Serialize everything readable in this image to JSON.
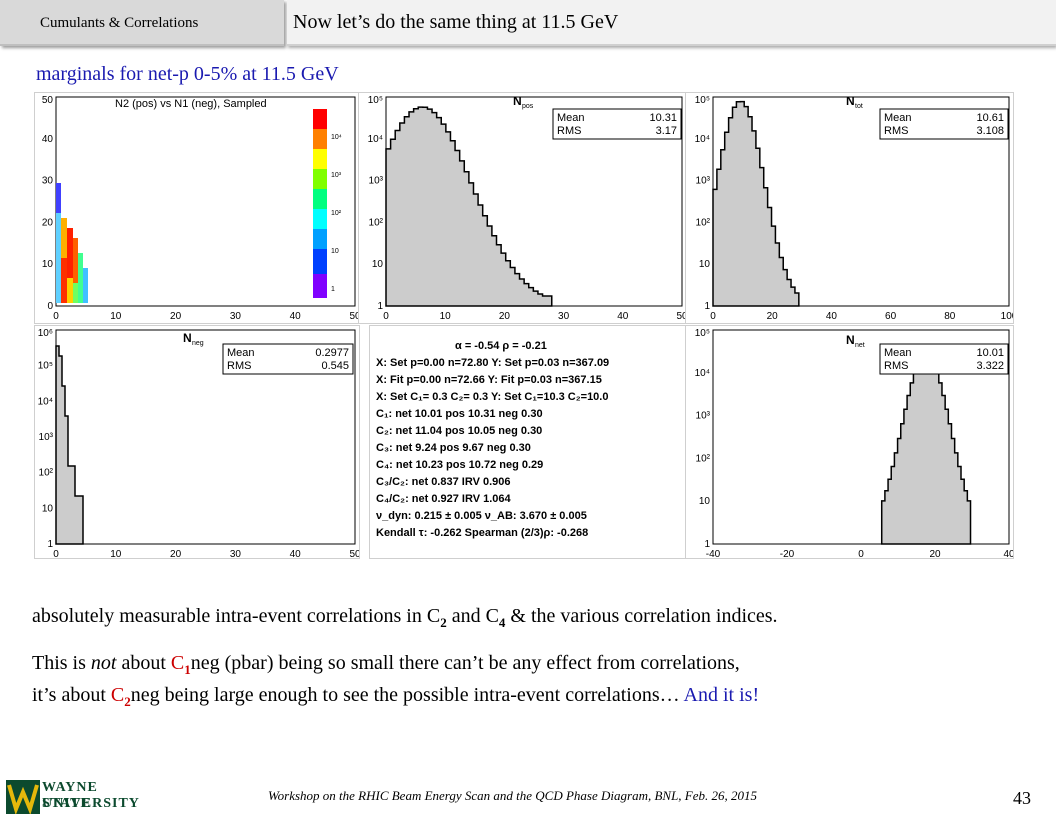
{
  "header": {
    "tag": "Cumulants & Correlations",
    "title": "Now let’s do the same thing at 11.5 GeV"
  },
  "subtitle": "marginals for net-p 0-5% at 11.5 GeV",
  "panels": {
    "p1": {
      "title": "N2 (pos) vs N1 (neg), Sampled",
      "xticks": [
        "0",
        "10",
        "20",
        "30",
        "40",
        "50"
      ],
      "yticks": [
        "0",
        "10",
        "20",
        "30",
        "40",
        "50"
      ],
      "zticks": [
        "10⁴",
        "10³",
        "10²",
        "10",
        "1"
      ]
    },
    "p2": {
      "title": "N",
      "title_sub": "pos",
      "mean_label": "Mean",
      "mean": "10.31",
      "rms_label": "RMS",
      "rms": "3.17",
      "xticks": [
        "0",
        "10",
        "20",
        "30",
        "40",
        "50"
      ],
      "yticks": [
        "10⁵",
        "10⁴",
        "10³",
        "10²",
        "10",
        "1"
      ]
    },
    "p3": {
      "title": "N",
      "title_sub": "tot",
      "mean_label": "Mean",
      "mean": "10.61",
      "rms_label": "RMS",
      "rms": "3.108",
      "xticks": [
        "0",
        "20",
        "40",
        "60",
        "80",
        "100"
      ],
      "yticks": [
        "10⁵",
        "10⁴",
        "10³",
        "10²",
        "10",
        "1"
      ]
    },
    "p4": {
      "title": "N",
      "title_sub": "neg",
      "mean_label": "Mean",
      "mean": "0.2977",
      "rms_label": "RMS",
      "rms": "0.545",
      "xticks": [
        "0",
        "10",
        "20",
        "30",
        "40",
        "50"
      ],
      "yticks": [
        "10⁶",
        "10⁵",
        "10⁴",
        "10³",
        "10²",
        "10",
        "1"
      ]
    },
    "p6": {
      "title": "N",
      "title_sub": "net",
      "mean_label": "Mean",
      "mean": "10.01",
      "rms_label": "RMS",
      "rms": "3.322",
      "xticks": [
        "-40",
        "-20",
        "0",
        "20",
        "40"
      ],
      "yticks": [
        "10⁵",
        "10⁴",
        "10³",
        "10²",
        "10",
        "1"
      ]
    }
  },
  "stats_lines": [
    "α = -0.54     ρ = -0.21",
    "X: Set p=0.00 n=72.80    Y: Set p=0.03 n=367.09",
    "X:  Fit p=0.00 n=72.66    Y:  Fit p=0.03 n=367.15",
    "X: Set C₁= 0.3 C₂= 0.3    Y: Set C₁=10.3 C₂=10.0",
    "C₁:   net 10.01   pos 10.31   neg 0.30",
    "C₂:   net 11.04   pos 10.05   neg 0.30",
    "C₃:   net  9.24   pos  9.67   neg 0.30",
    "C₄:   net 10.23   pos 10.72   neg 0.29",
    "C₃/C₂:  net 0.837  IRV 0.906",
    "C₄/C₂:  net 0.927  IRV 1.064",
    "ν_dyn:  0.215 ± 0.005          ν_AB:   3.670 ± 0.005",
    "Kendall τ:  -0.262          Spearman (2/3)ρ:  -0.268"
  ],
  "body": {
    "line1": "absolutely measurable intra-event correlations in C",
    "line1_sub2": "2",
    "line1_mid": " and C",
    "line1_sub4": "4",
    "line1_end": " & the various correlation indices.",
    "line2_a": "This is ",
    "line2_not": "not",
    "line2_b": " about ",
    "line2_c1": "C",
    "line2_c1sub": "1",
    "line2_c": "neg (pbar) being so small there can’t be any effect from correlations,",
    "line3_a": "it’s about ",
    "line3_c2": "C",
    "line3_c2sub": "2",
    "line3_b": "neg being large enough to see the possible intra-event correlations… ",
    "line3_end": "And it is!"
  },
  "footer": {
    "text": "Workshop on the RHIC Beam Energy Scan and the QCD Phase Diagram, BNL, Feb. 26, 2015",
    "page": "43",
    "logo_line1": "WAYNE STATE",
    "logo_line2": "UNIVERSITY"
  }
}
